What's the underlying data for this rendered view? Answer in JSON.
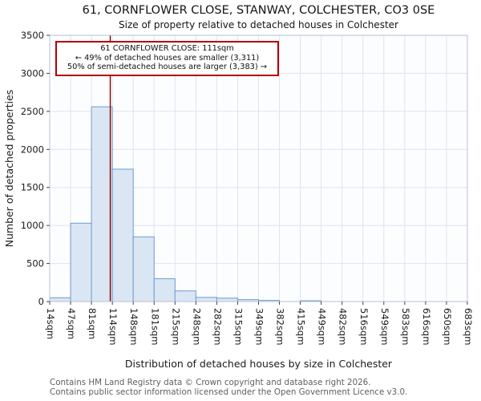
{
  "page": {
    "title": "61, CORNFLOWER CLOSE, STANWAY, COLCHESTER, CO3 0SE",
    "subtitle": "Size of property relative to detached houses in Colchester"
  },
  "annotation": {
    "line1": "61 CORNFLOWER CLOSE: 111sqm",
    "line2": "← 49% of detached houses are smaller (3,311)",
    "line3": "50% of semi-detached houses are larger (3,383) →"
  },
  "footer": {
    "line1": "Contains HM Land Registry data © Crown copyright and database right 2026.",
    "line2": "Contains public sector information licensed under the Open Government Licence v3.0."
  },
  "chart_data": {
    "type": "bar",
    "title": "61, CORNFLOWER CLOSE, STANWAY, COLCHESTER, CO3 0SE",
    "subtitle": "Size of property relative to detached houses in Colchester",
    "xlabel": "Distribution of detached houses by size in Colchester",
    "ylabel": "Number of detached properties",
    "ylim": [
      0,
      3500
    ],
    "yticks": [
      0,
      500,
      1000,
      1500,
      2000,
      2500,
      3000,
      3500
    ],
    "bin_edges_sqm": [
      14,
      47,
      81,
      114,
      148,
      181,
      215,
      248,
      282,
      315,
      349,
      382,
      415,
      449,
      482,
      516,
      549,
      583,
      616,
      650,
      683
    ],
    "tick_labels": [
      "14sqm",
      "47sqm",
      "81sqm",
      "114sqm",
      "148sqm",
      "181sqm",
      "215sqm",
      "248sqm",
      "282sqm",
      "315sqm",
      "349sqm",
      "382sqm",
      "415sqm",
      "449sqm",
      "482sqm",
      "516sqm",
      "549sqm",
      "583sqm",
      "616sqm",
      "650sqm",
      "683sqm"
    ],
    "values": [
      50,
      1030,
      2560,
      1740,
      850,
      300,
      140,
      55,
      45,
      25,
      15,
      0,
      10,
      0,
      0,
      0,
      0,
      0,
      0,
      0
    ],
    "marker": {
      "value_sqm": 111,
      "color": "#8b0000"
    },
    "colors": {
      "bar_fill": "#dbe6f4",
      "bar_edge": "#6e9bd0",
      "grid": "#dde4f0",
      "spine": "#b9c2d4",
      "plot_bg": "#fcfdff",
      "tick": "#444444"
    },
    "grid": true,
    "legend": false
  }
}
